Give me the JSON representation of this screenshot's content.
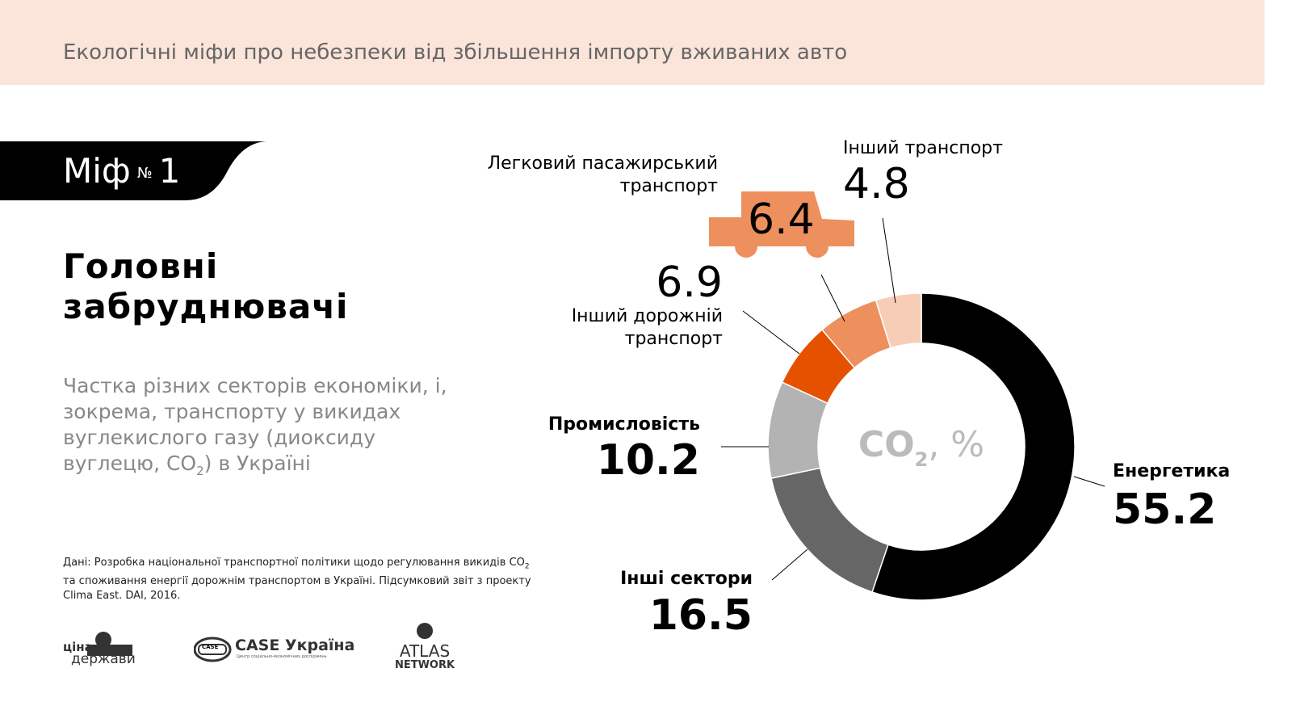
{
  "header": {
    "title": "Екологічні міфи про небезпеки від збільшення імпорту вживаних авто"
  },
  "myth": {
    "label": "Міф",
    "no_sign": "№",
    "number": "1"
  },
  "heading": {
    "line1": "Головні",
    "line2": "забруднювачі"
  },
  "subtitle": {
    "text_before": "Частка різних секторів економіки, і, зокрема, транспорту у викидах вуглекислого газу (диоксиду вуглецю, CO",
    "sub": "2",
    "text_after": ") в Україні"
  },
  "source": {
    "text_before": "Дані: Розробка національної транспортної політики щодо регулювання викидів CO",
    "sub": "2",
    "text_after": " та споживання енергії дорожнім транспортом в Україні. Підсумковий звіт з проекту Clima East. DAI, 2016."
  },
  "logos": [
    {
      "name": "ціна держави",
      "line1": "ціна",
      "line2": "держави"
    },
    {
      "name": "CASE Україна",
      "badge": "CASE",
      "text": "CASE Україна",
      "tagline": "Центр соціально-економічних досліджень"
    },
    {
      "name": "ATLAS NETWORK",
      "line1": "ATLAS",
      "line2": "NETWORK"
    }
  ],
  "chart_data": {
    "type": "pie",
    "donut": true,
    "center_label": {
      "text": "CO",
      "sub": "2",
      "suffix": ", %"
    },
    "start": "top",
    "direction": "clockwise",
    "categories": [
      "Енергетика",
      "Інші сектори",
      "Промисловість",
      "Інший дорожній транспорт",
      "Легковий пасажирський транспорт",
      "Інший транспорт"
    ],
    "values": [
      55.2,
      16.5,
      10.2,
      6.9,
      6.4,
      4.8
    ],
    "value_labels": [
      "55.2",
      "16.5",
      "10.2",
      "6.9",
      "6.4",
      "4.8"
    ],
    "colors": [
      "#000000",
      "#666666",
      "#b3b3b3",
      "#e65100",
      "#ee8f5e",
      "#f8cdb8"
    ]
  }
}
